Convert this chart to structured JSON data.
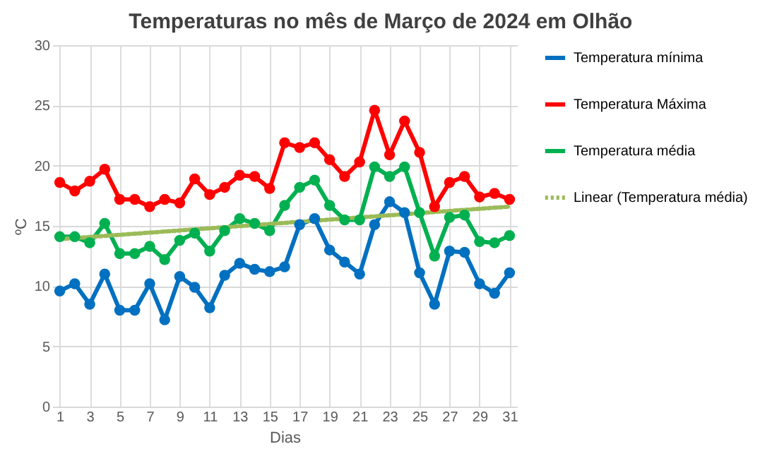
{
  "chart_data": {
    "type": "line",
    "title": "Temperaturas no mês de Março de 2024 em Olhão",
    "xlabel": "Dias",
    "ylabel": "ºC",
    "x": [
      1,
      2,
      3,
      4,
      5,
      6,
      7,
      8,
      9,
      10,
      11,
      12,
      13,
      14,
      15,
      16,
      17,
      18,
      19,
      20,
      21,
      22,
      23,
      24,
      25,
      26,
      27,
      28,
      29,
      30,
      31
    ],
    "xlim": [
      0.5,
      31.5
    ],
    "xticks": [
      1,
      3,
      5,
      7,
      9,
      11,
      13,
      15,
      17,
      19,
      21,
      23,
      25,
      27,
      29,
      31
    ],
    "ylim": [
      0,
      30
    ],
    "yticks": [
      0,
      5,
      10,
      15,
      20,
      25,
      30
    ],
    "grid": true,
    "legend": "right",
    "marker": "circle",
    "line_style": "solid",
    "series": [
      {
        "name": "Temperatura mínima",
        "color": "#0070c0",
        "values": [
          9.6,
          10.2,
          8.5,
          11,
          8,
          8,
          10.2,
          7.2,
          10.8,
          9.9,
          8.2,
          10.9,
          11.9,
          11.4,
          11.2,
          11.6,
          15.1,
          15.6,
          13,
          12,
          11,
          15.1,
          17,
          16.1,
          11.1,
          8.5,
          12.9,
          12.8,
          10.2,
          9.4,
          11.1
        ]
      },
      {
        "name": "Temperatura Máxima",
        "color": "#ff0000",
        "values": [
          18.6,
          17.9,
          18.7,
          19.7,
          17.2,
          17.2,
          16.6,
          17.2,
          16.9,
          18.9,
          17.6,
          18.2,
          19.2,
          19.1,
          18.1,
          21.9,
          21.5,
          21.9,
          20.5,
          19.1,
          20.3,
          24.6,
          20.9,
          23.7,
          21.1,
          16.6,
          18.6,
          19.1,
          17.4,
          17.7,
          17.2
        ]
      },
      {
        "name": "Temperatura média",
        "color": "#00b050",
        "values": [
          14.1,
          14.1,
          13.6,
          15.2,
          12.7,
          12.7,
          13.3,
          12.2,
          13.8,
          14.4,
          12.9,
          14.6,
          15.6,
          15.2,
          14.6,
          16.7,
          18.2,
          18.8,
          16.7,
          15.5,
          15.5,
          19.9,
          19.1,
          19.9,
          16.1,
          12.5,
          15.7,
          15.9,
          13.7,
          13.6,
          14.2
        ]
      },
      {
        "name": "Linear (Temperatura média)",
        "color": "#9bbb59",
        "type": "line",
        "marker": "none",
        "line_style": "dotted",
        "x": [
          1,
          31
        ],
        "values": [
          13.9,
          16.6
        ]
      }
    ]
  }
}
